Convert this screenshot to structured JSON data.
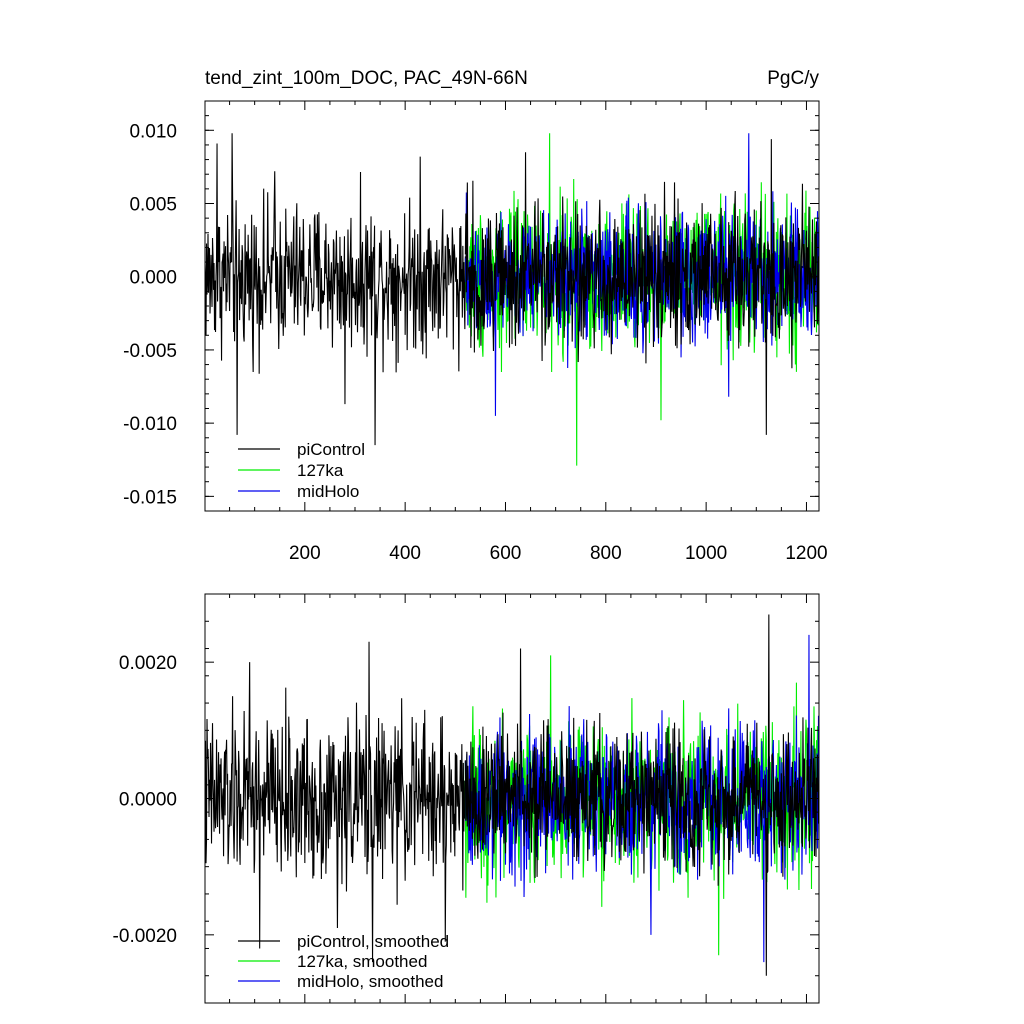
{
  "header": {
    "left_title": "tend_zint_100m_DOC, PAC_49N-66N",
    "right_title": "PgC/y"
  },
  "colors": {
    "piControl": "#000000",
    "127ka": "#00ee00",
    "midHolo": "#0000ee"
  },
  "chart_data": [
    {
      "type": "line",
      "title": "",
      "xlabel": "",
      "ylabel": "",
      "xlim": [
        1,
        1225
      ],
      "ylim": [
        -0.016,
        0.012
      ],
      "x_ticks": [
        200,
        400,
        600,
        800,
        1000,
        1200
      ],
      "x_tick_labels": [
        "200",
        "400",
        "600",
        "800",
        "1000",
        "1200"
      ],
      "y_ticks": [
        0.01,
        0.005,
        0.0,
        -0.005,
        -0.01,
        -0.015
      ],
      "y_tick_labels": [
        "0.010",
        "0.005",
        "0.000",
        "-0.005",
        "-0.010",
        "-0.015"
      ],
      "legend_position": "bottom-left",
      "grid": false,
      "series": [
        {
          "name": "piControl",
          "color": "#000000",
          "x_start": 1,
          "x_end": 520,
          "mean": 0.0,
          "amplitude": 0.0035,
          "extremes": [
            [
              25,
              0.0091
            ],
            [
              55,
              0.0098
            ],
            [
              65,
              -0.0108
            ],
            [
              140,
              0.0072
            ],
            [
              280,
              -0.0087
            ],
            [
              340,
              -0.0115
            ],
            [
              430,
              0.0082
            ]
          ]
        },
        {
          "name": "127ka",
          "color": "#00ee00",
          "x_start": 520,
          "x_end": 1225,
          "mean": 0.0,
          "amplitude": 0.0036,
          "extremes": [
            [
              688,
              0.0098
            ],
            [
              742,
              -0.0129
            ],
            [
              910,
              -0.0098
            ],
            [
              1180,
              -0.0065
            ]
          ]
        },
        {
          "name": "midHolo",
          "color": "#0000ee",
          "x_start": 520,
          "x_end": 1225,
          "mean": 0.0,
          "amplitude": 0.0033,
          "extremes": [
            [
              580,
              -0.0095
            ],
            [
              1085,
              0.0098
            ],
            [
              1045,
              -0.0082
            ]
          ]
        },
        {
          "name": "piControl",
          "color": "#000000",
          "x_start": 520,
          "x_end": 1225,
          "mean": 0.0,
          "amplitude": 0.0034,
          "extremes": [
            [
              1120,
              -0.0108
            ],
            [
              1130,
              0.0094
            ],
            [
              640,
              0.0085
            ]
          ]
        }
      ],
      "legend": [
        "piControl",
        "127ka",
        "midHolo"
      ]
    },
    {
      "type": "line",
      "title": "",
      "xlabel": "",
      "ylabel": "",
      "xlim": [
        1,
        1225
      ],
      "ylim": [
        -0.003,
        0.003
      ],
      "x_ticks": [
        200,
        400,
        600,
        800,
        1000,
        1200
      ],
      "x_tick_labels": [],
      "y_ticks": [
        0.002,
        0.0,
        -0.002
      ],
      "y_tick_labels": [
        "0.0020",
        "0.0000",
        "-0.0020"
      ],
      "legend_position": "bottom-left",
      "grid": false,
      "series": [
        {
          "name": "piControl, smoothed",
          "color": "#000000",
          "x_start": 1,
          "x_end": 520,
          "mean": 0.0,
          "amplitude": 0.00085,
          "extremes": [
            [
              90,
              0.002
            ],
            [
              110,
              -0.0022
            ],
            [
              265,
              -0.0019
            ],
            [
              328,
              0.0023
            ],
            [
              335,
              -0.0024
            ],
            [
              480,
              -0.0021
            ]
          ]
        },
        {
          "name": "127ka, smoothed",
          "color": "#00ee00",
          "x_start": 520,
          "x_end": 1225,
          "mean": 0.0,
          "amplitude": 0.0008,
          "extremes": [
            [
              690,
              0.0021
            ],
            [
              1025,
              -0.0023
            ],
            [
              1180,
              0.0017
            ]
          ]
        },
        {
          "name": "midHolo, smoothed",
          "color": "#0000ee",
          "x_start": 520,
          "x_end": 1225,
          "mean": 0.0,
          "amplitude": 0.00075,
          "extremes": [
            [
              1205,
              0.0024
            ],
            [
              1115,
              -0.0024
            ],
            [
              890,
              -0.002
            ]
          ]
        },
        {
          "name": "piControl, smoothed",
          "color": "#000000",
          "x_start": 520,
          "x_end": 1225,
          "mean": 0.0,
          "amplitude": 0.0007,
          "extremes": [
            [
              630,
              0.0022
            ],
            [
              1125,
              0.0027
            ],
            [
              1120,
              -0.0026
            ]
          ]
        }
      ],
      "legend": [
        "piControl, smoothed",
        "127ka, smoothed",
        "midHolo, smoothed"
      ]
    }
  ]
}
